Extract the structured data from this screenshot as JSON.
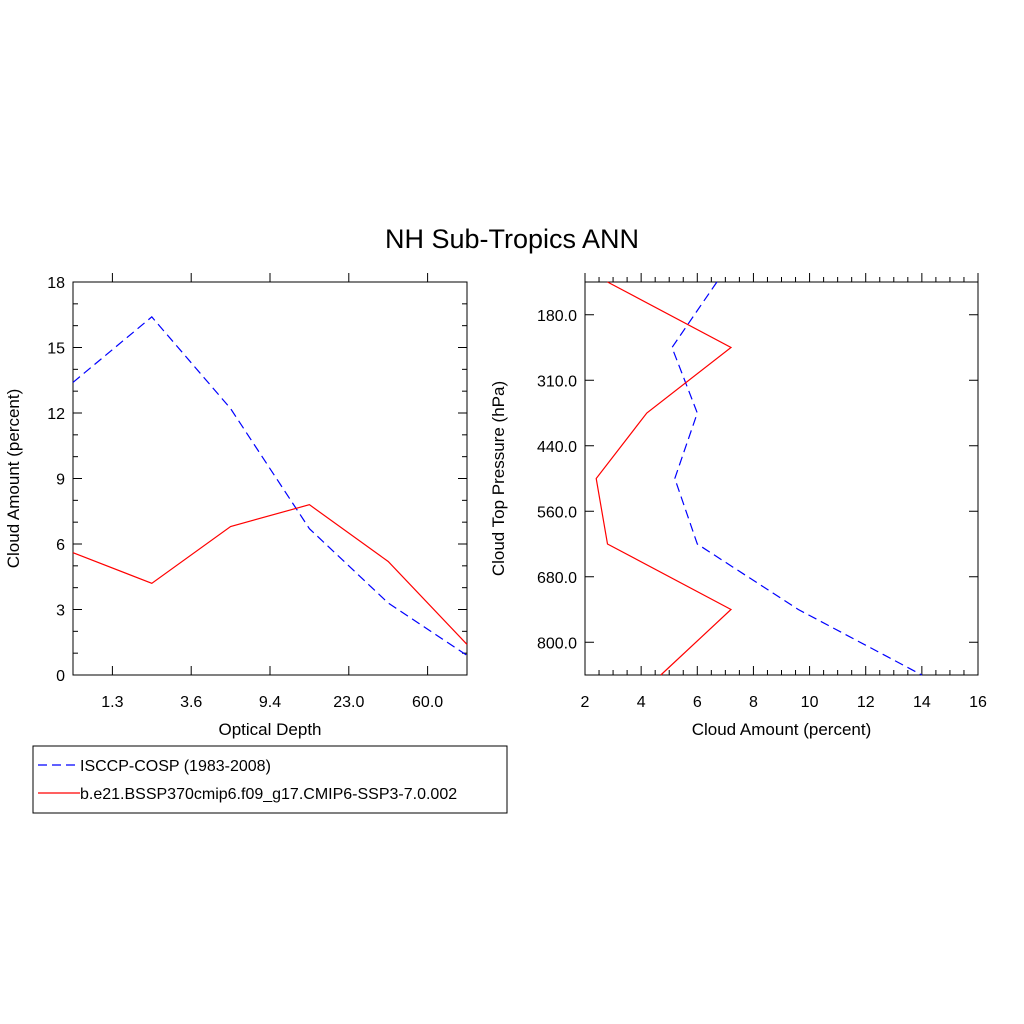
{
  "title": "NH Sub-Tropics ANN",
  "chart_data": [
    {
      "type": "line",
      "xlabel": "Optical Depth",
      "ylabel": "Cloud Amount (percent)",
      "x_tick_labels": [
        "1.3",
        "3.6",
        "9.4",
        "23.0",
        "60.0"
      ],
      "y_ticks": [
        "0",
        "3",
        "6",
        "9",
        "12",
        "15",
        "18"
      ],
      "ylim": [
        0,
        18
      ],
      "series": [
        {
          "name": "ISCCP-COSP (1983-2008)",
          "color": "#0000ff",
          "dash": "dashed",
          "values": [
            13.4,
            16.4,
            12.2,
            6.7,
            3.3,
            0.9
          ]
        },
        {
          "name": "b.e21.BSSP370cmip6.f09_g17.CMIP6-SSP3-7.0.002",
          "color": "#ff0000",
          "dash": "solid",
          "values": [
            5.6,
            4.2,
            6.8,
            7.8,
            5.2,
            1.4
          ]
        }
      ]
    },
    {
      "type": "line",
      "xlabel": "Cloud Amount (percent)",
      "ylabel": "Cloud Top Pressure (hPa)",
      "x_ticks": [
        "2",
        "4",
        "6",
        "8",
        "10",
        "12",
        "14",
        "16"
      ],
      "xlim": [
        2,
        16
      ],
      "y_tick_labels": [
        "180.0",
        "310.0",
        "440.0",
        "560.0",
        "680.0",
        "800.0"
      ],
      "series": [
        {
          "name": "ISCCP-COSP (1983-2008)",
          "color": "#0000ff",
          "dash": "dashed",
          "values": [
            6.7,
            5.1,
            6.0,
            5.2,
            6.0,
            9.6,
            14.0
          ]
        },
        {
          "name": "b.e21.BSSP370cmip6.f09_g17.CMIP6-SSP3-7.0.002",
          "color": "#ff0000",
          "dash": "solid",
          "values": [
            2.8,
            7.2,
            4.2,
            2.4,
            2.8,
            7.2,
            4.7
          ]
        }
      ]
    }
  ],
  "legend": {
    "items": [
      {
        "label": "ISCCP-COSP (1983-2008)",
        "color": "#0000ff",
        "dash": "dashed"
      },
      {
        "label": "b.e21.BSSP370cmip6.f09_g17.CMIP6-SSP3-7.0.002",
        "color": "#ff0000",
        "dash": "solid"
      }
    ]
  }
}
